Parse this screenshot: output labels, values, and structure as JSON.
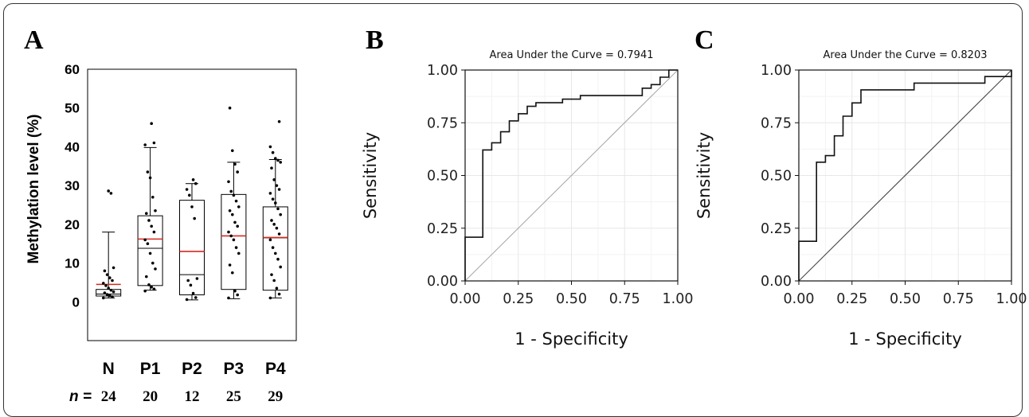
{
  "panels": {
    "a": {
      "letter": "A",
      "ylabel": "Methylation level (%)",
      "yticks": [
        0,
        10,
        20,
        30,
        40,
        50,
        60
      ],
      "n_label": "n =",
      "colors": {
        "box": "#000000",
        "mean": "#d42a1e",
        "point": "#000000"
      }
    },
    "b": {
      "letter": "B"
    },
    "c": {
      "letter": "C"
    }
  },
  "chart_data": [
    {
      "type": "box",
      "title": "",
      "ylabel": "Methylation level (%)",
      "ylim": [
        -10,
        60
      ],
      "categories": [
        "N",
        "P1",
        "P2",
        "P3",
        "P4"
      ],
      "n": [
        24,
        20,
        12,
        25,
        29
      ],
      "boxes": [
        {
          "whisker_low": 1.0,
          "q1": 1.5,
          "median": 2.0,
          "q3": 3.2,
          "whisker_high": 18.0,
          "mean": 4.5,
          "points": [
            1.0,
            1.3,
            1.6,
            1.9,
            2.3,
            2.6,
            3.0,
            3.5,
            4.2,
            4.8,
            5.5,
            6.2,
            7.0,
            8.0,
            8.8,
            28.0,
            28.6
          ]
        },
        {
          "whisker_low": 3.0,
          "q1": 4.2,
          "median": 13.8,
          "q3": 22.2,
          "whisker_high": 39.8,
          "mean": 16.2,
          "points": [
            2.8,
            3.3,
            3.8,
            4.4,
            6.5,
            8.5,
            10.0,
            12.5,
            15.0,
            16.0,
            18.0,
            19.5,
            21.0,
            22.8,
            23.5,
            27.0,
            32.0,
            33.5,
            40.5,
            41.0,
            46.0
          ]
        },
        {
          "whisker_low": 0.5,
          "q1": 1.8,
          "median": 7.0,
          "q3": 26.2,
          "whisker_high": 30.5,
          "mean": 13.0,
          "points": [
            0.6,
            1.1,
            2.2,
            4.3,
            5.5,
            6.0,
            21.5,
            24.5,
            27.5,
            29.0,
            30.5,
            31.5
          ]
        },
        {
          "whisker_low": 0.8,
          "q1": 3.2,
          "median": 17.0,
          "q3": 27.7,
          "whisker_high": 36.0,
          "mean": 17.0,
          "points": [
            1.0,
            1.8,
            2.8,
            7.5,
            9.5,
            12.5,
            14.0,
            16.0,
            17.0,
            18.0,
            19.5,
            20.5,
            22.5,
            23.5,
            24.5,
            26.0,
            27.5,
            28.5,
            31.0,
            33.5,
            35.5,
            39.0,
            50.0
          ]
        },
        {
          "whisker_low": 1.0,
          "q1": 3.0,
          "median": 16.5,
          "q3": 24.5,
          "whisker_high": 36.7,
          "mean": 16.6,
          "points": [
            1.0,
            2.0,
            3.5,
            5.5,
            7.0,
            9.0,
            11.0,
            12.5,
            14.0,
            16.0,
            17.5,
            19.0,
            20.0,
            21.0,
            22.5,
            24.0,
            25.5,
            26.5,
            28.0,
            29.0,
            30.0,
            31.5,
            34.5,
            36.0,
            36.5,
            37.0,
            38.5,
            40.0,
            46.5
          ]
        }
      ]
    },
    {
      "type": "line",
      "title": "Area Under the Curve = 0.7941",
      "xlabel": "1 - Specificity",
      "ylabel": "Sensitivity",
      "xlim": [
        0,
        1
      ],
      "ylim": [
        0,
        1
      ],
      "xticks": [
        "0.00",
        "0.25",
        "0.50",
        "0.75",
        "1.00"
      ],
      "yticks": [
        "0.00",
        "0.25",
        "0.50",
        "0.75",
        "1.00"
      ],
      "grid": true,
      "diagonal_color": "#aaaaaa",
      "series": [
        {
          "x": [
            0,
            0,
            0.083,
            0.083,
            0.125,
            0.125,
            0.167,
            0.167,
            0.208,
            0.208,
            0.25,
            0.25,
            0.292,
            0.292,
            0.333,
            0.333,
            0.458,
            0.458,
            0.542,
            0.542,
            0.625,
            0.625,
            0.833,
            0.833,
            0.875,
            0.875,
            0.917,
            0.917,
            0.958,
            0.958,
            1.0
          ],
          "y": [
            0,
            0.207,
            0.207,
            0.621,
            0.621,
            0.655,
            0.655,
            0.707,
            0.707,
            0.759,
            0.759,
            0.793,
            0.793,
            0.828,
            0.828,
            0.845,
            0.845,
            0.862,
            0.862,
            0.879,
            0.879,
            0.879,
            0.879,
            0.914,
            0.914,
            0.931,
            0.931,
            0.966,
            0.966,
            1.0,
            1.0
          ]
        }
      ]
    },
    {
      "type": "line",
      "title": "Area Under the Curve = 0.8203",
      "xlabel": "1 - Specificity",
      "ylabel": "Sensitivity",
      "xlim": [
        0,
        1
      ],
      "ylim": [
        0,
        1
      ],
      "xticks": [
        "0.00",
        "0.25",
        "0.50",
        "0.75",
        "1.00"
      ],
      "yticks": [
        "0.00",
        "0.25",
        "0.50",
        "0.75",
        "1.00"
      ],
      "grid": true,
      "diagonal_color": "#444444",
      "series": [
        {
          "x": [
            0,
            0,
            0.083,
            0.083,
            0.125,
            0.125,
            0.167,
            0.167,
            0.208,
            0.208,
            0.25,
            0.25,
            0.292,
            0.292,
            0.542,
            0.542,
            0.875,
            0.875,
            1.0,
            1.0
          ],
          "y": [
            0,
            0.188,
            0.188,
            0.563,
            0.563,
            0.594,
            0.594,
            0.688,
            0.688,
            0.781,
            0.781,
            0.844,
            0.844,
            0.906,
            0.906,
            0.938,
            0.938,
            0.969,
            0.969,
            1.0
          ]
        }
      ]
    }
  ]
}
